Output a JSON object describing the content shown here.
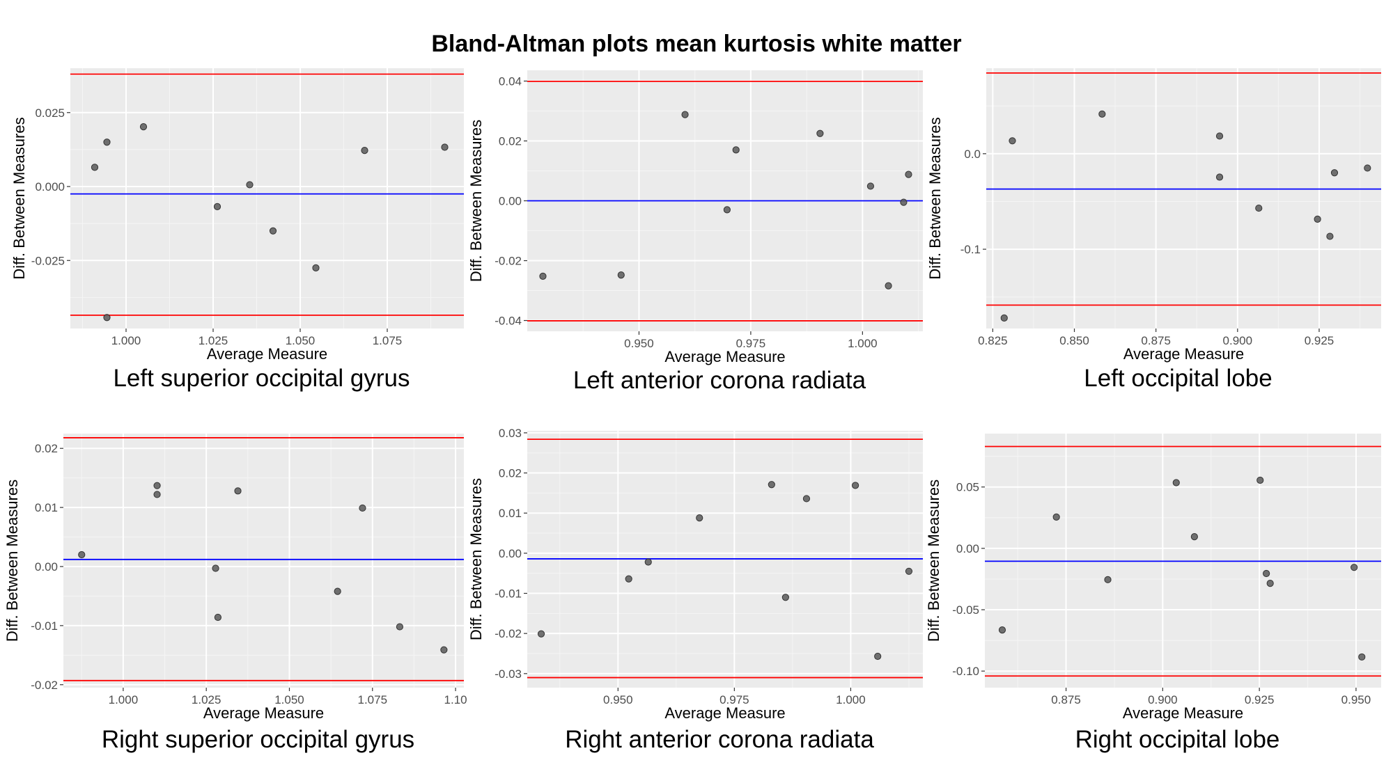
{
  "figure_title": "Bland-Altman plots mean kurtosis white matter",
  "colors": {
    "panel_bg": "#ebebeb",
    "grid_major": "#ffffff",
    "grid_minor": "#f5f5f5",
    "limits_of_agreement": "#ff0000",
    "mean_difference": "#0000ff",
    "points": "#595959",
    "point_outline": "#333333"
  },
  "chart_data": [
    {
      "type": "scatter",
      "caption": "Left superior occipital gyrus",
      "xlabel": "Average Measure",
      "ylabel": "Diff. Between Measures",
      "xlim": [
        0.984,
        1.097
      ],
      "ylim": [
        -0.048,
        0.04
      ],
      "xticks": [
        1.0,
        1.025,
        1.05,
        1.075
      ],
      "xtick_labels": [
        "1.000",
        "1.025",
        "1.050",
        "1.075"
      ],
      "yticks": [
        -0.025,
        0.0,
        0.025
      ],
      "ytick_labels": [
        "-0.025",
        "0.000",
        "0.025"
      ],
      "mean_diff": -0.0025,
      "upper_loa": 0.038,
      "lower_loa": -0.0435,
      "points": [
        {
          "x": 0.991,
          "y": 0.0065
        },
        {
          "x": 0.9945,
          "y": 0.015
        },
        {
          "x": 0.9945,
          "y": -0.0443
        },
        {
          "x": 1.005,
          "y": 0.0202
        },
        {
          "x": 1.0262,
          "y": -0.0068
        },
        {
          "x": 1.0355,
          "y": 0.0006
        },
        {
          "x": 1.0422,
          "y": -0.015
        },
        {
          "x": 1.0545,
          "y": -0.0275
        },
        {
          "x": 1.0685,
          "y": 0.0122
        },
        {
          "x": 1.0915,
          "y": 0.0133
        }
      ]
    },
    {
      "type": "scatter",
      "caption": "Left anterior corona radiata",
      "xlabel": "Average Measure",
      "ylabel": "Diff. Between Measures",
      "xlim": [
        0.925,
        1.0135
      ],
      "ylim": [
        -0.0436,
        0.0436
      ],
      "xticks": [
        0.95,
        0.975,
        1.0
      ],
      "xtick_labels": [
        "0.950",
        "0.975",
        "1.000"
      ],
      "yticks": [
        -0.04,
        -0.02,
        0.0,
        0.02,
        0.04
      ],
      "ytick_labels": [
        "-0.04",
        "-0.02",
        "0.00",
        "0.02",
        "0.04"
      ],
      "mean_diff": 0.0,
      "upper_loa": 0.0399,
      "lower_loa": -0.0401,
      "points": [
        {
          "x": 0.9285,
          "y": -0.0252
        },
        {
          "x": 0.946,
          "y": -0.0248
        },
        {
          "x": 0.9603,
          "y": 0.0288
        },
        {
          "x": 0.9697,
          "y": -0.003
        },
        {
          "x": 0.9717,
          "y": 0.017
        },
        {
          "x": 0.9905,
          "y": 0.0225
        },
        {
          "x": 1.0018,
          "y": 0.0049
        },
        {
          "x": 1.0058,
          "y": -0.0284
        },
        {
          "x": 1.0092,
          "y": -0.0005
        },
        {
          "x": 1.0103,
          "y": 0.0088
        }
      ]
    },
    {
      "type": "scatter",
      "caption": "Left occipital lobe",
      "xlabel": "Average Measure",
      "ylabel": "Diff. Between Measures",
      "xlim": [
        0.823,
        0.944
      ],
      "ylim": [
        -0.183,
        0.0895
      ],
      "xticks": [
        0.825,
        0.85,
        0.875,
        0.9,
        0.925
      ],
      "xtick_labels": [
        "0.825",
        "0.850",
        "0.875",
        "0.900",
        "0.925"
      ],
      "yticks": [
        -0.1,
        0.0
      ],
      "ytick_labels": [
        "-0.1",
        "0.0"
      ],
      "mean_diff": -0.037,
      "upper_loa": 0.0845,
      "lower_loa": -0.1585,
      "points": [
        {
          "x": 0.8285,
          "y": -0.172
        },
        {
          "x": 0.831,
          "y": 0.0135
        },
        {
          "x": 0.8585,
          "y": 0.0415
        },
        {
          "x": 0.8945,
          "y": 0.0185
        },
        {
          "x": 0.8945,
          "y": -0.0245
        },
        {
          "x": 0.9065,
          "y": -0.057
        },
        {
          "x": 0.9245,
          "y": -0.0685
        },
        {
          "x": 0.9283,
          "y": -0.0865
        },
        {
          "x": 0.9297,
          "y": -0.02
        },
        {
          "x": 0.9398,
          "y": -0.015
        }
      ]
    },
    {
      "type": "scatter",
      "caption": "Right superior occipital gyrus",
      "xlabel": "Average Measure",
      "ylabel": "Diff. Between Measures",
      "xlim": [
        0.982,
        1.1025
      ],
      "ylim": [
        -0.0205,
        0.0225
      ],
      "xticks": [
        1.0,
        1.025,
        1.05,
        1.075,
        1.1
      ],
      "xtick_labels": [
        "1.000",
        "1.025",
        "1.050",
        "1.075",
        "1.10"
      ],
      "yticks": [
        -0.02,
        -0.01,
        0.0,
        0.01,
        0.02
      ],
      "ytick_labels": [
        "-0.02",
        "-0.01",
        "0.00",
        "0.01",
        "0.02"
      ],
      "mean_diff": 0.0012,
      "upper_loa": 0.0218,
      "lower_loa": -0.0193,
      "points": [
        {
          "x": 0.9875,
          "y": 0.002
        },
        {
          "x": 1.0102,
          "y": 0.0137
        },
        {
          "x": 1.0102,
          "y": 0.0122
        },
        {
          "x": 1.0278,
          "y": -0.0003
        },
        {
          "x": 1.0285,
          "y": -0.0086
        },
        {
          "x": 1.0345,
          "y": 0.0128
        },
        {
          "x": 1.0645,
          "y": -0.0042
        },
        {
          "x": 1.072,
          "y": 0.0099
        },
        {
          "x": 1.0832,
          "y": -0.0102
        },
        {
          "x": 1.0965,
          "y": -0.0141
        }
      ]
    },
    {
      "type": "scatter",
      "caption": "Right anterior corona radiata",
      "xlabel": "Average Measure",
      "ylabel": "Diff. Between Measures",
      "xlim": [
        0.9305,
        1.0155
      ],
      "ylim": [
        -0.0335,
        0.0305
      ],
      "xticks": [
        0.95,
        0.975,
        1.0
      ],
      "xtick_labels": [
        "0.950",
        "0.975",
        "1.000"
      ],
      "yticks": [
        -0.03,
        -0.02,
        -0.01,
        0.0,
        0.01,
        0.02,
        0.03
      ],
      "ytick_labels": [
        "-0.03",
        "-0.02",
        "-0.01",
        "0.00",
        "0.01",
        "0.02",
        "0.03"
      ],
      "mean_diff": -0.0014,
      "upper_loa": 0.0284,
      "lower_loa": -0.031,
      "points": [
        {
          "x": 0.9335,
          "y": -0.0201
        },
        {
          "x": 0.9523,
          "y": -0.0064
        },
        {
          "x": 0.9565,
          "y": -0.0022
        },
        {
          "x": 0.9675,
          "y": 0.0088
        },
        {
          "x": 0.983,
          "y": 0.0171
        },
        {
          "x": 0.986,
          "y": -0.011
        },
        {
          "x": 0.9905,
          "y": 0.0136
        },
        {
          "x": 1.001,
          "y": 0.0169
        },
        {
          "x": 1.0058,
          "y": -0.0257
        },
        {
          "x": 1.0125,
          "y": -0.0045
        }
      ]
    },
    {
      "type": "scatter",
      "caption": "Right occipital lobe",
      "xlabel": "Average Measure",
      "ylabel": "Diff. Between Measures",
      "xlim": [
        0.854,
        0.9565
      ],
      "ylim": [
        -0.1135,
        0.0935
      ],
      "xticks": [
        0.875,
        0.9,
        0.925,
        0.95
      ],
      "xtick_labels": [
        "0.875",
        "0.900",
        "0.925",
        "0.950"
      ],
      "yticks": [
        -0.1,
        -0.05,
        0.0,
        0.05
      ],
      "ytick_labels": [
        "-0.10",
        "-0.05",
        "0.00",
        "0.05"
      ],
      "mean_diff": -0.0105,
      "upper_loa": 0.083,
      "lower_loa": -0.104,
      "points": [
        {
          "x": 0.8585,
          "y": -0.0665
        },
        {
          "x": 0.8725,
          "y": 0.0255
        },
        {
          "x": 0.8858,
          "y": -0.0255
        },
        {
          "x": 0.9035,
          "y": 0.0535
        },
        {
          "x": 0.9082,
          "y": 0.0095
        },
        {
          "x": 0.9252,
          "y": 0.0555
        },
        {
          "x": 0.9268,
          "y": -0.0205
        },
        {
          "x": 0.9278,
          "y": -0.0285
        },
        {
          "x": 0.9495,
          "y": -0.0155
        },
        {
          "x": 0.9515,
          "y": -0.0885
        }
      ]
    }
  ]
}
